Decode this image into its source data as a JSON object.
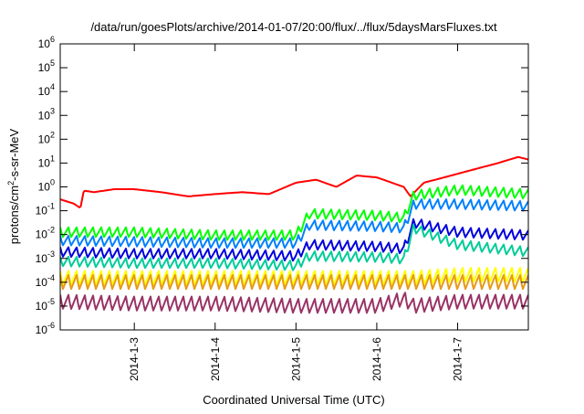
{
  "chart_data": {
    "type": "line",
    "title": "/data/run/goesPlots/archive/2014-01-07/20:00/flux/../flux/5daysMarsFluxes.txt",
    "xlabel": "Coordinated Universal Time (UTC)",
    "ylabel": "protons/cm2-s-sr-MeV",
    "ylabel_parts": {
      "pre": "protons/cm",
      "sup": "2",
      "post": "-s-sr-MeV"
    },
    "y_scale": "log",
    "ylim": [
      1e-06,
      1000000.0
    ],
    "y_ticks": [
      {
        "base": "10",
        "exp": "-6",
        "value": 1e-06
      },
      {
        "base": "10",
        "exp": "-5",
        "value": 1e-05
      },
      {
        "base": "10",
        "exp": "-4",
        "value": 0.0001
      },
      {
        "base": "10",
        "exp": "-3",
        "value": 0.001
      },
      {
        "base": "10",
        "exp": "-2",
        "value": 0.01
      },
      {
        "base": "10",
        "exp": "-1",
        "value": 0.1
      },
      {
        "base": "10",
        "exp": "0",
        "value": 1
      },
      {
        "base": "10",
        "exp": "1",
        "value": 10
      },
      {
        "base": "10",
        "exp": "2",
        "value": 100
      },
      {
        "base": "10",
        "exp": "3",
        "value": 1000
      },
      {
        "base": "10",
        "exp": "4",
        "value": 10000
      },
      {
        "base": "10",
        "exp": "5",
        "value": 100000
      },
      {
        "base": "10",
        "exp": "6",
        "value": 1000000
      }
    ],
    "xlim": [
      "2014-01-02T02:00",
      "2014-01-07T21:00"
    ],
    "x_ticks": [
      {
        "label": "2014-1-3",
        "value": "2014-01-03T00:00"
      },
      {
        "label": "2014-1-4",
        "value": "2014-01-04T00:00"
      },
      {
        "label": "2014-1-5",
        "value": "2014-01-05T00:00"
      },
      {
        "label": "2014-1-6",
        "value": "2014-01-06T00:00"
      },
      {
        "label": "2014-1-7",
        "value": "2014-01-07T00:00"
      }
    ],
    "grid": false,
    "legend": "none",
    "series": [
      {
        "color": "#ff0000",
        "points": [
          [
            "2014-01-02T02:00",
            0.3
          ],
          [
            "2014-01-02T06:00",
            0.2
          ],
          [
            "2014-01-02T08:00",
            0.13
          ],
          [
            "2014-01-02T09:00",
            0.7
          ],
          [
            "2014-01-02T12:00",
            0.6
          ],
          [
            "2014-01-02T18:00",
            0.8
          ],
          [
            "2014-01-03T00:00",
            0.8
          ],
          [
            "2014-01-03T08:00",
            0.6
          ],
          [
            "2014-01-03T16:00",
            0.4
          ],
          [
            "2014-01-04T00:00",
            0.5
          ],
          [
            "2014-01-04T08:00",
            0.6
          ],
          [
            "2014-01-04T16:00",
            0.5
          ],
          [
            "2014-01-05T00:00",
            1.5
          ],
          [
            "2014-01-05T06:00",
            2.0
          ],
          [
            "2014-01-05T12:00",
            1.0
          ],
          [
            "2014-01-05T18:00",
            3.0
          ],
          [
            "2014-01-06T00:00",
            2.5
          ],
          [
            "2014-01-06T08:00",
            1.0
          ],
          [
            "2014-01-06T10:00",
            0.4
          ],
          [
            "2014-01-06T14:00",
            1.5
          ],
          [
            "2014-01-06T20:00",
            2.5
          ],
          [
            "2014-01-07T04:00",
            5.0
          ],
          [
            "2014-01-07T12:00",
            10
          ],
          [
            "2014-01-07T18:00",
            18
          ],
          [
            "2014-01-07T21:00",
            14
          ]
        ]
      },
      {
        "color": "#00ff00",
        "points": [
          [
            "2014-01-02T02:00",
            0.02
          ],
          [
            "2014-01-03T00:00",
            0.02
          ],
          [
            "2014-01-04T00:00",
            0.015
          ],
          [
            "2014-01-05T00:00",
            0.015
          ],
          [
            "2014-01-05T04:00",
            0.12
          ],
          [
            "2014-01-06T00:00",
            0.1
          ],
          [
            "2014-01-06T08:00",
            0.08
          ],
          [
            "2014-01-06T11:00",
            0.7
          ],
          [
            "2014-01-07T00:00",
            1.2
          ],
          [
            "2014-01-07T21:00",
            0.8
          ]
        ]
      },
      {
        "color": "#0080ff",
        "points": [
          [
            "2014-01-02T02:00",
            0.009
          ],
          [
            "2014-01-03T00:00",
            0.008
          ],
          [
            "2014-01-04T00:00",
            0.007
          ],
          [
            "2014-01-05T00:00",
            0.007
          ],
          [
            "2014-01-05T04:00",
            0.04
          ],
          [
            "2014-01-06T00:00",
            0.035
          ],
          [
            "2014-01-06T08:00",
            0.03
          ],
          [
            "2014-01-06T11:00",
            0.3
          ],
          [
            "2014-01-07T00:00",
            0.3
          ],
          [
            "2014-01-07T21:00",
            0.25
          ]
        ]
      },
      {
        "color": "#0000dd",
        "points": [
          [
            "2014-01-02T02:00",
            0.003
          ],
          [
            "2014-01-03T00:00",
            0.0025
          ],
          [
            "2014-01-04T00:00",
            0.0025
          ],
          [
            "2014-01-05T00:00",
            0.002
          ],
          [
            "2014-01-05T04:00",
            0.006
          ],
          [
            "2014-01-06T00:00",
            0.005
          ],
          [
            "2014-01-06T08:00",
            0.004
          ],
          [
            "2014-01-06T11:00",
            0.05
          ],
          [
            "2014-01-07T00:00",
            0.02
          ],
          [
            "2014-01-07T21:00",
            0.015
          ]
        ]
      },
      {
        "color": "#00cc99",
        "points": [
          [
            "2014-01-02T02:00",
            0.0012
          ],
          [
            "2014-01-03T00:00",
            0.001
          ],
          [
            "2014-01-04T00:00",
            0.001
          ],
          [
            "2014-01-05T00:00",
            0.0008
          ],
          [
            "2014-01-05T04:00",
            0.002
          ],
          [
            "2014-01-06T00:00",
            0.0018
          ],
          [
            "2014-01-06T08:00",
            0.0015
          ],
          [
            "2014-01-06T11:00",
            0.03
          ],
          [
            "2014-01-07T00:00",
            0.006
          ],
          [
            "2014-01-07T21:00",
            0.003
          ]
        ]
      },
      {
        "color": "#ffff00",
        "points": [
          [
            "2014-01-02T02:00",
            0.0003
          ],
          [
            "2014-01-03T00:00",
            0.0003
          ],
          [
            "2014-01-04T00:00",
            0.0003
          ],
          [
            "2014-01-05T00:00",
            0.0003
          ],
          [
            "2014-01-06T00:00",
            0.0003
          ],
          [
            "2014-01-06T11:00",
            0.0003
          ],
          [
            "2014-01-07T00:00",
            0.0004
          ],
          [
            "2014-01-07T21:00",
            0.0004
          ]
        ]
      },
      {
        "color": "#e69a1a",
        "points": [
          [
            "2014-01-02T02:00",
            0.0002
          ],
          [
            "2014-01-03T00:00",
            0.0002
          ],
          [
            "2014-01-04T00:00",
            0.0002
          ],
          [
            "2014-01-05T00:00",
            0.0002
          ],
          [
            "2014-01-06T00:00",
            0.0002
          ],
          [
            "2014-01-06T11:00",
            0.0002
          ],
          [
            "2014-01-07T00:00",
            0.0002
          ],
          [
            "2014-01-07T21:00",
            0.0002
          ]
        ]
      },
      {
        "color": "#993366",
        "points": [
          [
            "2014-01-02T02:00",
            3e-05
          ],
          [
            "2014-01-03T00:00",
            2.5e-05
          ],
          [
            "2014-01-04T00:00",
            2.5e-05
          ],
          [
            "2014-01-05T00:00",
            2e-05
          ],
          [
            "2014-01-06T00:00",
            2e-05
          ],
          [
            "2014-01-06T08:00",
            4e-05
          ],
          [
            "2014-01-06T11:00",
            2e-05
          ],
          [
            "2014-01-07T00:00",
            3e-05
          ],
          [
            "2014-01-07T21:00",
            3e-05
          ]
        ]
      }
    ]
  }
}
